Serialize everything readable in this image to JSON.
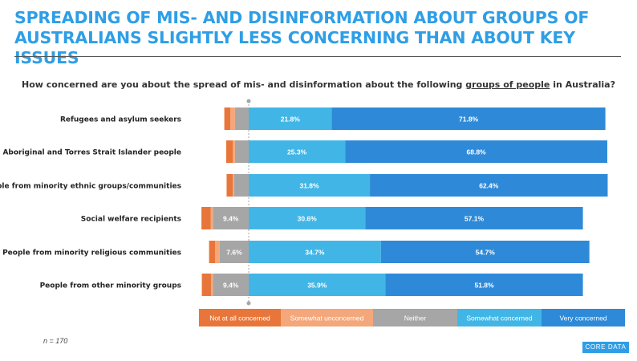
{
  "title_line1": "SPREADING OF MIS- AND DISINFORMATION ABOUT GROUPS OF",
  "title_line2": "AUSTRALIANS SLIGHTLY LESS CONCERNING THAN ABOUT KEY ISSUES",
  "question": {
    "before": "How concerned are you about the spread of mis- and disinformation about the following ",
    "underlined": "groups of people",
    "after": " in Australia?"
  },
  "footnote": "n = 170",
  "logo_text": "CORE DATA",
  "colors": {
    "title": "#2e9ee6",
    "not_at_all": "#e8763a",
    "somewhat_unconcerned": "#f3a77a",
    "neither": "#a6a6a6",
    "somewhat_concerned": "#41b6e6",
    "very_concerned": "#2e8ad8"
  },
  "chart_data": {
    "type": "bar",
    "orientation": "horizontal",
    "stacked": true,
    "diverging": true,
    "categories": [
      "Refugees and asylum seekers",
      "Aboriginal and Torres Strait Islander people",
      "People from minority ethnic groups/communities",
      "Social welfare recipients",
      "People from minority religious communities",
      "People from other minority groups"
    ],
    "series": [
      {
        "name": "Not at all concerned",
        "values": [
          1.6,
          1.7,
          1.6,
          2.4,
          1.6,
          2.4
        ],
        "labels": [
          "",
          "",
          "",
          "",
          "",
          ""
        ]
      },
      {
        "name": "Somewhat unconcerned",
        "values": [
          1.2,
          0.6,
          0.4,
          0.6,
          1.2,
          0.5
        ],
        "labels": [
          "",
          "",
          "",
          "",
          "",
          ""
        ]
      },
      {
        "name": "Neither",
        "values": [
          3.6,
          3.6,
          3.8,
          9.4,
          7.6,
          9.4
        ],
        "labels": [
          "",
          "",
          "",
          "9.4%",
          "7.6%",
          "9.4%"
        ]
      },
      {
        "name": "Somewhat concerned",
        "values": [
          21.8,
          25.3,
          31.8,
          30.6,
          34.7,
          35.9
        ],
        "labels": [
          "21.8%",
          "25.3%",
          "31.8%",
          "30.6%",
          "34.7%",
          "35.9%"
        ]
      },
      {
        "name": "Very concerned",
        "values": [
          71.8,
          68.8,
          62.4,
          57.1,
          54.7,
          51.8
        ],
        "labels": [
          "71.8%",
          "68.8%",
          "62.4%",
          "57.1%",
          "54.7%",
          "51.8%"
        ]
      }
    ]
  }
}
